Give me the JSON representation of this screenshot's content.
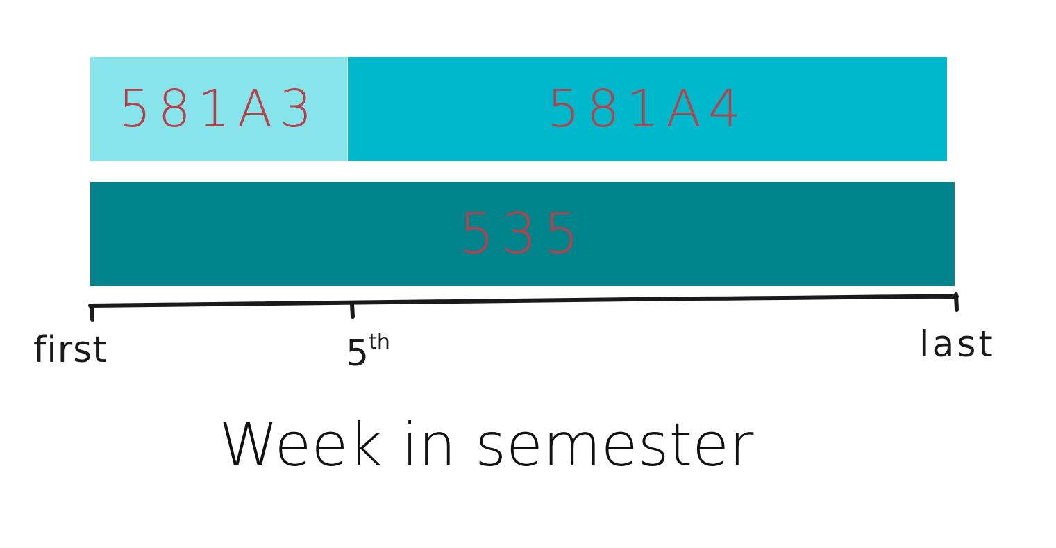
{
  "colors": {
    "background": "#ffffff",
    "label_color": "#b8404a",
    "axis_color": "#1a1a1a"
  },
  "bars": [
    {
      "id": "581a3",
      "label": "581A3",
      "color": "#87e4ea"
    },
    {
      "id": "581a4",
      "label": "581A4",
      "color": "#00b8cc"
    },
    {
      "id": "535",
      "label": "535",
      "color": "#00838a"
    }
  ],
  "axis": {
    "title": "Week in semester",
    "ticks": [
      {
        "id": "first",
        "label": "first"
      },
      {
        "id": "fifth",
        "label": "5",
        "superscript": "th"
      },
      {
        "id": "last",
        "label": "last"
      }
    ]
  }
}
